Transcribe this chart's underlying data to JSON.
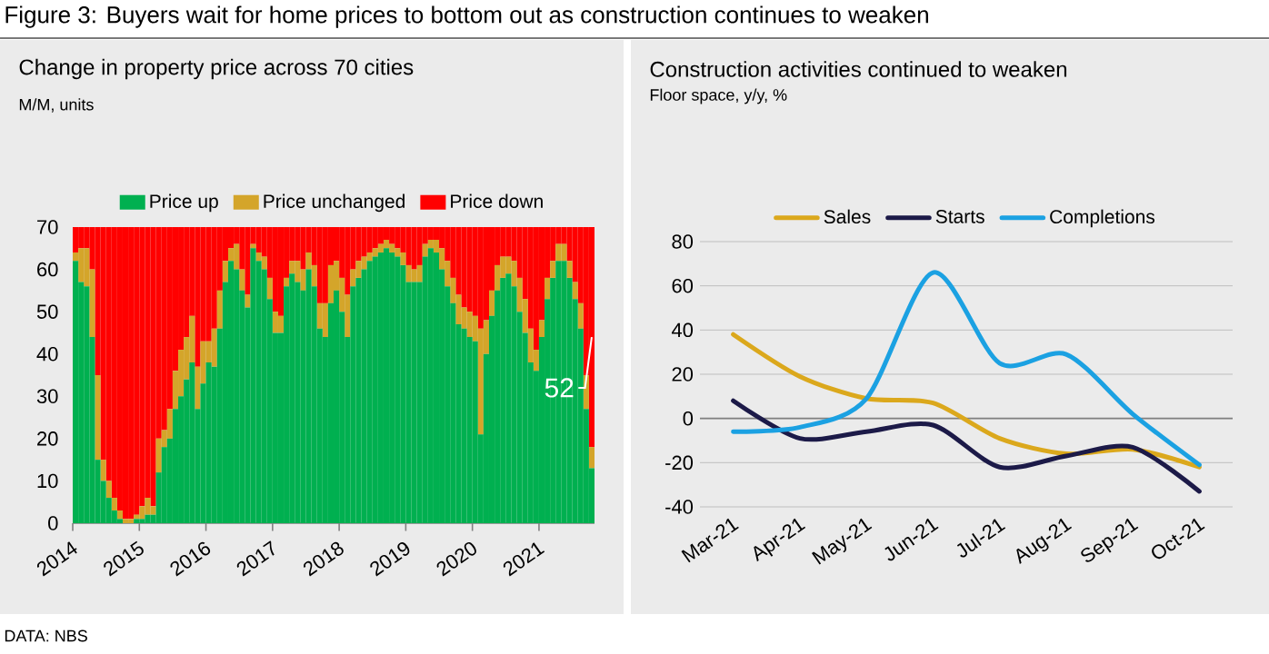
{
  "chart_data": [
    {
      "type": "bar",
      "stacked": true,
      "title": "Change in property price across 70 cities",
      "subtitle": "M/M, units",
      "annotations": [
        "Figure 3: Buyers wait for home prices to bottom out as construction continues to weaken",
        "DATA: NBS",
        {
          "text": "52",
          "x": "2021-10",
          "y": 44
        }
      ],
      "x": [
        "2014-01",
        "2014-02",
        "2014-03",
        "2014-04",
        "2014-05",
        "2014-06",
        "2014-07",
        "2014-08",
        "2014-09",
        "2014-10",
        "2014-11",
        "2014-12",
        "2015-01",
        "2015-02",
        "2015-03",
        "2015-04",
        "2015-05",
        "2015-06",
        "2015-07",
        "2015-08",
        "2015-09",
        "2015-10",
        "2015-11",
        "2015-12",
        "2016-01",
        "2016-02",
        "2016-03",
        "2016-04",
        "2016-05",
        "2016-06",
        "2016-07",
        "2016-08",
        "2016-09",
        "2016-10",
        "2016-11",
        "2016-12",
        "2017-01",
        "2017-02",
        "2017-03",
        "2017-04",
        "2017-05",
        "2017-06",
        "2017-07",
        "2017-08",
        "2017-09",
        "2017-10",
        "2017-11",
        "2017-12",
        "2018-01",
        "2018-02",
        "2018-03",
        "2018-04",
        "2018-05",
        "2018-06",
        "2018-07",
        "2018-08",
        "2018-09",
        "2018-10",
        "2018-11",
        "2018-12",
        "2019-01",
        "2019-02",
        "2019-03",
        "2019-04",
        "2019-05",
        "2019-06",
        "2019-07",
        "2019-08",
        "2019-09",
        "2019-10",
        "2019-11",
        "2019-12",
        "2020-01",
        "2020-02",
        "2020-03",
        "2020-04",
        "2020-05",
        "2020-06",
        "2020-07",
        "2020-08",
        "2020-09",
        "2020-10",
        "2020-11",
        "2020-12",
        "2021-01",
        "2021-02",
        "2021-03",
        "2021-04",
        "2021-05",
        "2021-06",
        "2021-07",
        "2021-08",
        "2021-09",
        "2021-10"
      ],
      "series": [
        {
          "name": "Price up",
          "color": "#00b050",
          "values": [
            62,
            57,
            56,
            44,
            15,
            10,
            6,
            3,
            1,
            0,
            0,
            1,
            1,
            2,
            2,
            12,
            18,
            20,
            27,
            30,
            34,
            38,
            27,
            33,
            38,
            37,
            46,
            57,
            62,
            60,
            55,
            51,
            65,
            62,
            60,
            53,
            45,
            45,
            56,
            59,
            57,
            55,
            60,
            56,
            46,
            44,
            52,
            55,
            50,
            44,
            56,
            58,
            60,
            62,
            63,
            64,
            65,
            64,
            63,
            61,
            57,
            57,
            57,
            63,
            65,
            64,
            60,
            56,
            52,
            47,
            46,
            44,
            43,
            21,
            40,
            49,
            55,
            58,
            59,
            56,
            50,
            45,
            38,
            36,
            44,
            53,
            58,
            62,
            62,
            58,
            53,
            46,
            27,
            13
          ]
        },
        {
          "name": "Price unchanged",
          "color": "#d4a52a",
          "values": [
            2,
            8,
            9,
            16,
            20,
            5,
            4,
            3,
            2,
            1,
            1,
            1,
            3,
            4,
            2,
            8,
            4,
            7,
            9,
            11,
            10,
            11,
            10,
            10,
            5,
            9,
            9,
            5,
            3,
            6,
            5,
            3,
            1,
            2,
            3,
            5,
            5,
            4,
            2,
            3,
            5,
            5,
            4,
            5,
            6,
            8,
            9,
            7,
            8,
            10,
            4,
            4,
            3,
            2,
            2,
            2,
            2,
            2,
            2,
            3,
            4,
            3,
            4,
            3,
            2,
            3,
            5,
            6,
            6,
            7,
            5,
            6,
            6,
            25,
            8,
            6,
            6,
            5,
            4,
            6,
            8,
            8,
            8,
            5,
            4,
            5,
            4,
            4,
            4,
            4,
            4,
            6,
            8,
            5
          ]
        },
        {
          "name": "Price down",
          "color": "#ff0000",
          "values": [
            6,
            5,
            5,
            10,
            35,
            55,
            60,
            64,
            67,
            69,
            69,
            68,
            66,
            64,
            66,
            50,
            48,
            43,
            34,
            29,
            26,
            21,
            33,
            27,
            27,
            24,
            15,
            8,
            5,
            4,
            10,
            16,
            4,
            6,
            7,
            12,
            20,
            21,
            12,
            8,
            8,
            10,
            6,
            9,
            18,
            18,
            9,
            8,
            12,
            16,
            10,
            8,
            7,
            6,
            5,
            4,
            3,
            4,
            5,
            6,
            9,
            10,
            9,
            4,
            3,
            3,
            5,
            8,
            12,
            16,
            19,
            20,
            21,
            24,
            22,
            15,
            9,
            7,
            7,
            8,
            12,
            17,
            24,
            29,
            22,
            12,
            8,
            4,
            4,
            8,
            13,
            18,
            35,
            52
          ]
        }
      ],
      "xlim": [
        "2014-01",
        "2021-11"
      ],
      "xticks": [
        "2014",
        "2015",
        "2016",
        "2017",
        "2018",
        "2019",
        "2020",
        "2021"
      ],
      "ylim": [
        0,
        70
      ],
      "yticks": [
        0,
        10,
        20,
        30,
        40,
        50,
        60,
        70
      ],
      "legend": "top"
    },
    {
      "type": "line",
      "title": "Construction activities continued to weaken",
      "subtitle": "Floor space, y/y, %",
      "categories": [
        "Mar-21",
        "Apr-21",
        "May-21",
        "Jun-21",
        "Jul-21",
        "Aug-21",
        "Sep-21",
        "Oct-21"
      ],
      "series": [
        {
          "name": "Sales",
          "color": "#dba81c",
          "values": [
            38,
            19,
            9,
            7,
            -9,
            -16,
            -14,
            -22
          ]
        },
        {
          "name": "Starts",
          "color": "#1c1a48",
          "values": [
            8,
            -9,
            -6,
            -3,
            -22,
            -17,
            -13,
            -33
          ]
        },
        {
          "name": "Completions",
          "color": "#1ba1e2",
          "values": [
            -6,
            -4,
            9,
            66,
            25,
            29,
            2,
            -21
          ]
        }
      ],
      "ylim": [
        -40,
        80
      ],
      "yticks": [
        -40,
        -20,
        0,
        20,
        40,
        60,
        80
      ],
      "grid": "y",
      "legend": "top"
    }
  ]
}
